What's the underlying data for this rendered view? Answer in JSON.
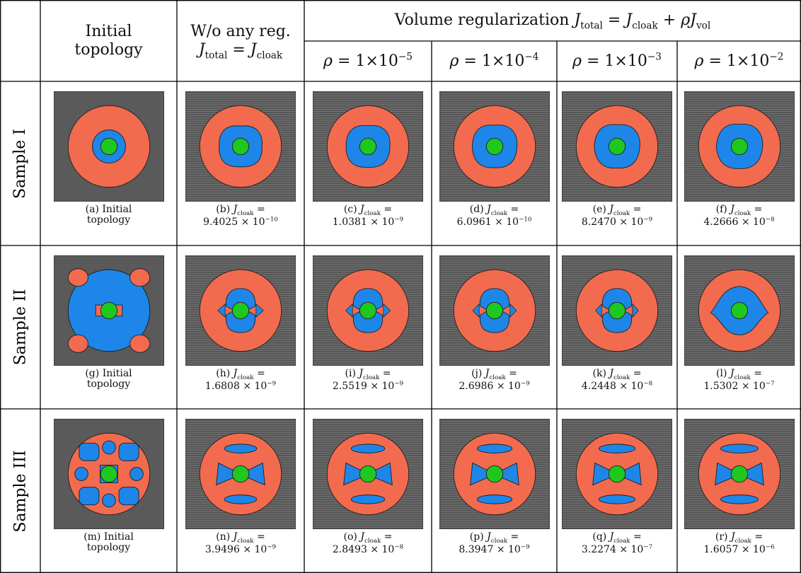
{
  "header": {
    "initial": "Initial topology",
    "noreg": {
      "text": "W/o any reg.",
      "lhs_sym": "J",
      "lhs_sub": "total",
      "eq": "=",
      "rhs_sym": "J",
      "rhs_sub": "cloak"
    },
    "volume": {
      "text": "Volume regularization",
      "lhs_sym": "J",
      "lhs_sub": "total",
      "eq": "=",
      "a_sym": "J",
      "a_sub": "cloak",
      "plus": "+",
      "b_sym": "ρJ",
      "b_sub": "vol"
    },
    "rho": [
      {
        "sym": "ρ",
        "eq": "=",
        "coef": "1",
        "times": "×",
        "base": "10",
        "exp": "−5"
      },
      {
        "sym": "ρ",
        "eq": "=",
        "coef": "1",
        "times": "×",
        "base": "10",
        "exp": "−4"
      },
      {
        "sym": "ρ",
        "eq": "=",
        "coef": "1",
        "times": "×",
        "base": "10",
        "exp": "−3"
      },
      {
        "sym": "ρ",
        "eq": "=",
        "coef": "1",
        "times": "×",
        "base": "10",
        "exp": "−2"
      }
    ]
  },
  "rows": [
    {
      "label": "Sample I",
      "cells": [
        {
          "tag": "(a)",
          "text": "Initial topology"
        },
        {
          "tag": "(b)",
          "sym": "J",
          "sub": "cloak",
          "eq": "=",
          "mantissa": "9.4025",
          "times": "×",
          "base": "10",
          "exp": "−10"
        },
        {
          "tag": "(c)",
          "sym": "J",
          "sub": "cloak",
          "eq": "=",
          "mantissa": "1.0381",
          "times": "×",
          "base": "10",
          "exp": "−9"
        },
        {
          "tag": "(d)",
          "sym": "J",
          "sub": "cloak",
          "eq": "=",
          "mantissa": "6.0961",
          "times": "×",
          "base": "10",
          "exp": "−10"
        },
        {
          "tag": "(e)",
          "sym": "J",
          "sub": "cloak",
          "eq": "=",
          "mantissa": "8.2470",
          "times": "×",
          "base": "10",
          "exp": "−9"
        },
        {
          "tag": "(f)",
          "sym": "J",
          "sub": "cloak",
          "eq": "=",
          "mantissa": "4.2666",
          "times": "×",
          "base": "10",
          "exp": "−8"
        }
      ]
    },
    {
      "label": "Sample II",
      "cells": [
        {
          "tag": "(g)",
          "text": "Initial topology"
        },
        {
          "tag": "(h)",
          "sym": "J",
          "sub": "cloak",
          "eq": "=",
          "mantissa": "1.6808",
          "times": "×",
          "base": "10",
          "exp": "−9"
        },
        {
          "tag": "(i)",
          "sym": "J",
          "sub": "cloak",
          "eq": "=",
          "mantissa": "2.5519",
          "times": "×",
          "base": "10",
          "exp": "−9"
        },
        {
          "tag": "(j)",
          "sym": "J",
          "sub": "cloak",
          "eq": "=",
          "mantissa": "2.6986",
          "times": "×",
          "base": "10",
          "exp": "−9"
        },
        {
          "tag": "(k)",
          "sym": "J",
          "sub": "cloak",
          "eq": "=",
          "mantissa": "4.2448",
          "times": "×",
          "base": "10",
          "exp": "−8"
        },
        {
          "tag": "(l)",
          "sym": "J",
          "sub": "cloak",
          "eq": "=",
          "mantissa": "1.5302",
          "times": "×",
          "base": "10",
          "exp": "−7"
        }
      ]
    },
    {
      "label": "Sample III",
      "cells": [
        {
          "tag": "(m)",
          "text": "Initial topology"
        },
        {
          "tag": "(n)",
          "sym": "J",
          "sub": "cloak",
          "eq": "=",
          "mantissa": "3.9496",
          "times": "×",
          "base": "10",
          "exp": "−9"
        },
        {
          "tag": "(o)",
          "sym": "J",
          "sub": "cloak",
          "eq": "=",
          "mantissa": "2.8493",
          "times": "×",
          "base": "10",
          "exp": "−8"
        },
        {
          "tag": "(p)",
          "sym": "J",
          "sub": "cloak",
          "eq": "=",
          "mantissa": "8.3947",
          "times": "×",
          "base": "10",
          "exp": "−9"
        },
        {
          "tag": "(q)",
          "sym": "J",
          "sub": "cloak",
          "eq": "=",
          "mantissa": "3.2274",
          "times": "×",
          "base": "10",
          "exp": "−7"
        },
        {
          "tag": "(r)",
          "sym": "J",
          "sub": "cloak",
          "eq": "=",
          "mantissa": "1.6057",
          "times": "×",
          "base": "10",
          "exp": "−6"
        }
      ]
    }
  ]
}
